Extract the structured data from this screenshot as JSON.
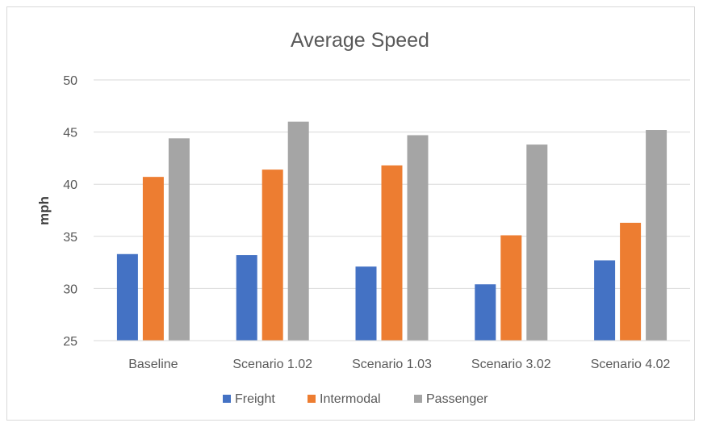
{
  "chart_data": {
    "type": "bar",
    "title": "Average Speed",
    "xlabel": "",
    "ylabel": "mph",
    "ylim": [
      25,
      50
    ],
    "yticks": [
      25,
      30,
      35,
      40,
      45,
      50
    ],
    "grid": true,
    "legend_position": "bottom",
    "categories": [
      "Baseline",
      "Scenario 1.02",
      "Scenario 1.03",
      "Scenario 3.02",
      "Scenario 4.02"
    ],
    "series": [
      {
        "name": "Freight",
        "color": "#4472C4",
        "values": [
          33.3,
          33.2,
          32.1,
          30.4,
          32.7
        ]
      },
      {
        "name": "Intermodal",
        "color": "#ED7D31",
        "values": [
          40.7,
          41.4,
          41.8,
          35.1,
          36.3
        ]
      },
      {
        "name": "Passenger",
        "color": "#A5A5A5",
        "values": [
          44.4,
          46.0,
          44.7,
          43.8,
          45.2
        ]
      }
    ]
  },
  "colors": {
    "gridline": "#d9d9d9",
    "text": "#595959",
    "frame": "#d9d9d9"
  }
}
